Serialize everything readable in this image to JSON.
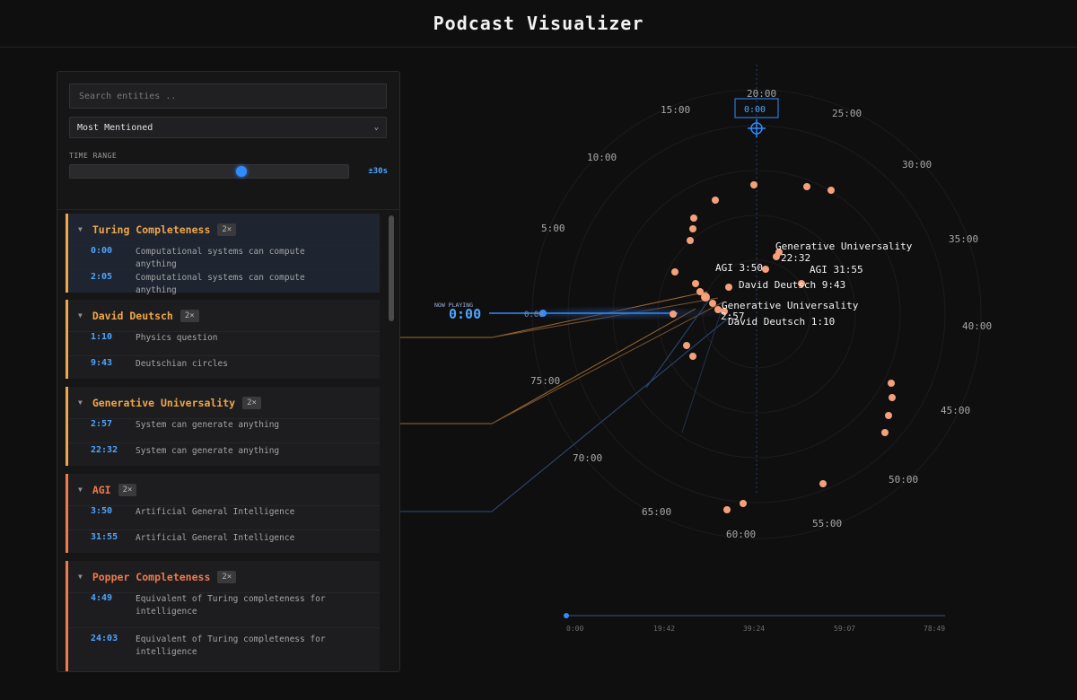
{
  "app": {
    "title": "Podcast Visualizer"
  },
  "sidebar": {
    "search_placeholder": "Search entities ..",
    "sort": {
      "selected": "Most Mentioned"
    },
    "time_range": {
      "label": "TIME RANGE",
      "value_label": "±30s",
      "fraction": 0.62
    },
    "entities": [
      {
        "name": "Turing Completeness",
        "count": "2×",
        "color": "#f0a64a",
        "selected": true,
        "mentions": [
          {
            "time": "0:00",
            "text": "Computational systems can compute anything"
          },
          {
            "time": "2:05",
            "text": "Computational systems can compute anything"
          }
        ]
      },
      {
        "name": "David Deutsch",
        "count": "2×",
        "color": "#f0a64a",
        "mentions": [
          {
            "time": "1:10",
            "text": "Physics question"
          },
          {
            "time": "9:43",
            "text": "Deutschian circles"
          }
        ]
      },
      {
        "name": "Generative Universality",
        "count": "2×",
        "color": "#f0a64a",
        "mentions": [
          {
            "time": "2:57",
            "text": "System can generate anything"
          },
          {
            "time": "22:32",
            "text": "System can generate anything"
          }
        ]
      },
      {
        "name": "AGI",
        "count": "2×",
        "color": "#ef7a4c",
        "mentions": [
          {
            "time": "3:50",
            "text": "Artificial General Intelligence"
          },
          {
            "time": "31:55",
            "text": "Artificial General Intelligence"
          }
        ]
      },
      {
        "name": "Popper Completeness",
        "count": "2×",
        "color": "#ef7a4c",
        "mentions": [
          {
            "time": "4:49",
            "text": "Equivalent of Turing completeness for intelligence"
          },
          {
            "time": "24:03",
            "text": "Equivalent of Turing completeness for intelligence"
          }
        ]
      }
    ]
  },
  "player": {
    "now_playing_label": "NOW PLAYING",
    "current_time": "0:00",
    "cursor_time": "0:00",
    "head_time": "0:00"
  },
  "clock_labels": [
    "20:00",
    "25:00",
    "30:00",
    "35:00",
    "40:00",
    "45:00",
    "50:00",
    "55:00",
    "60:00",
    "65:00",
    "70:00",
    "75:00",
    "5:00",
    "10:00",
    "15:00"
  ],
  "point_labels": [
    "Generative Universality",
    "22:32",
    "AGI 3:50",
    "AGI 31:55",
    "David Deutsch 9:43",
    "Generative Universality",
    "2:57",
    "David Deutsch 1:10"
  ],
  "timeline": {
    "ticks": [
      "0:00",
      "19:42",
      "39:24",
      "59:07",
      "78:49"
    ],
    "progress": 0.0
  },
  "colors": {
    "accent": "#2f8cff",
    "orange": "#f0a64a",
    "red": "#ef7a4c",
    "dot": "#f5a07a"
  }
}
